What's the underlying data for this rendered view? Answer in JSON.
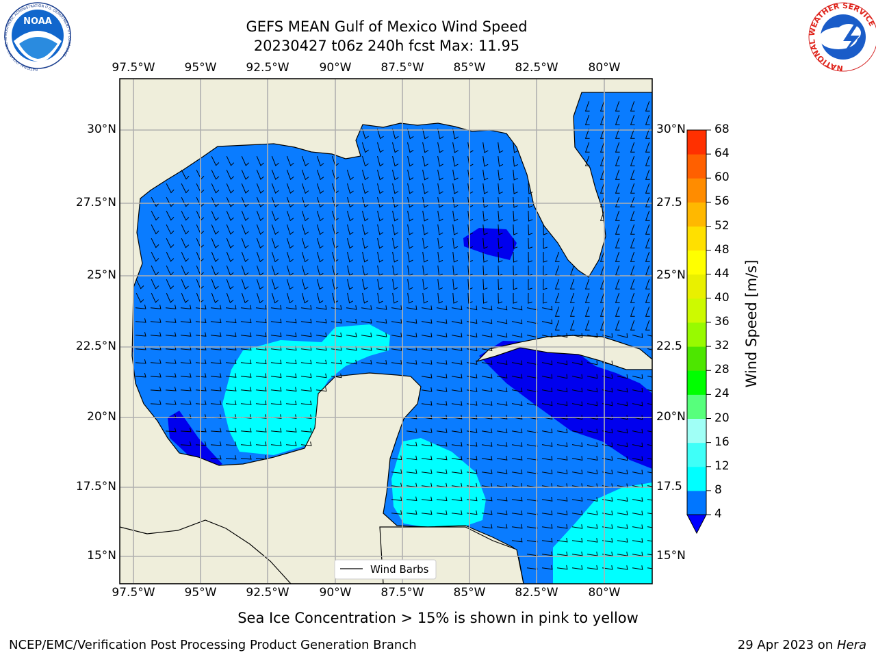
{
  "header": {
    "title_line1": "GEFS MEAN Gulf of Mexico Wind Speed",
    "title_line2": "20230427 t06z 240h fcst   Max: 11.95",
    "noaa_logo_text": "NOAA",
    "noaa_ring_text": "NATIONAL OCEANIC AND ATMOSPHERIC ADMINISTRATION  U.S. DEPARTMENT OF COMMERCE",
    "nws_ring_text": "NATIONAL WEATHER SERVICE"
  },
  "axes": {
    "lon_ticks": [
      "97.5°W",
      "95°W",
      "92.5°W",
      "90°W",
      "87.5°W",
      "85°W",
      "82.5°W",
      "80°W"
    ],
    "lat_ticks_left": [
      "30°N",
      "27.5°N",
      "25°N",
      "22.5°N",
      "20°N",
      "17.5°N",
      "15°N"
    ],
    "lat_ticks_right": [
      "30°N",
      "27.5",
      "25°N",
      "22.5",
      "20°N",
      "17.5",
      "15°N"
    ]
  },
  "legend": {
    "label": "Wind Barbs"
  },
  "colorbar": {
    "label": "Wind Speed [m/s]",
    "ticks": [
      "4",
      "8",
      "12",
      "16",
      "20",
      "24",
      "28",
      "32",
      "36",
      "40",
      "44",
      "48",
      "52",
      "56",
      "60",
      "64",
      "68"
    ],
    "colors": [
      "#0076ff",
      "#00ffff",
      "#3ffff8",
      "#a0fff6",
      "#57ff7c",
      "#00ff00",
      "#4de600",
      "#98fa00",
      "#cdfa00",
      "#e9f000",
      "#ffff00",
      "#ffe000",
      "#ffb800",
      "#ff8c00",
      "#ff6000",
      "#ff3000"
    ],
    "under_color": "#0000ff",
    "water_base_color": "#0a7cff",
    "calm_color": "#0000ee",
    "breezy_color": "#00ffff",
    "land_color": "#efeedb"
  },
  "notes": {
    "sea_ice": "Sea Ice Concentration > 15% is shown in pink to yellow"
  },
  "footer": {
    "left": "NCEP/EMC/Verification Post Processing Product Generation Branch",
    "right_prefix": "29 Apr 2023 on ",
    "right_host": "Hera"
  }
}
